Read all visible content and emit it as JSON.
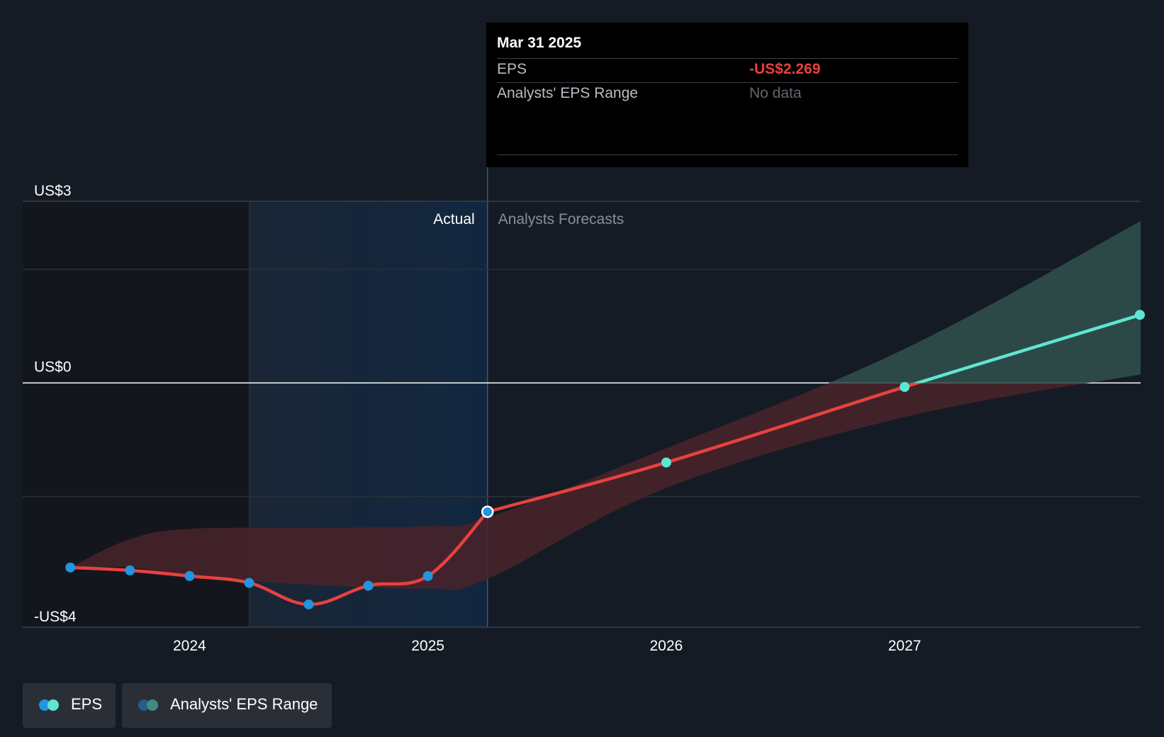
{
  "chart_data": {
    "type": "line",
    "y_axis": {
      "labels": [
        {
          "text": "US$3",
          "value": 3
        },
        {
          "text": "US$0",
          "value": 0
        },
        {
          "text": "-US$4",
          "value": -4
        }
      ],
      "ylim": [
        -4.3,
        3.2
      ],
      "zero_line": true
    },
    "x_axis": {
      "ticks": [
        {
          "text": "2024",
          "value": 2024.0
        },
        {
          "text": "2025",
          "value": 2025.0
        },
        {
          "text": "2026",
          "value": 2026.0
        },
        {
          "text": "2027",
          "value": 2027.0
        }
      ],
      "xlim": [
        2023.3,
        2027.99
      ]
    },
    "zones": {
      "actual_label": "Actual",
      "forecast_label": "Analysts Forecasts",
      "shaded_past_start": 2024.25,
      "divider": 2025.25
    },
    "series": [
      {
        "name": "EPS",
        "kind": "actual",
        "color": "#e8413e",
        "point_color": "#2394df",
        "points": [
          {
            "x": 2023.5,
            "y": -3.25
          },
          {
            "x": 2023.75,
            "y": -3.3
          },
          {
            "x": 2024.0,
            "y": -3.4
          },
          {
            "x": 2024.25,
            "y": -3.52
          },
          {
            "x": 2024.5,
            "y": -3.9
          },
          {
            "x": 2024.75,
            "y": -3.57
          },
          {
            "x": 2025.0,
            "y": -3.4
          },
          {
            "x": 2025.25,
            "y": -2.269
          }
        ]
      },
      {
        "name": "EPS",
        "kind": "forecast",
        "color": "#e8413e",
        "positive_color": "#5ee6d0",
        "point_color": "#5ee6d0",
        "points": [
          {
            "x": 2025.25,
            "y": -2.269
          },
          {
            "x": 2026.0,
            "y": -1.4
          },
          {
            "x": 2027.0,
            "y": -0.07
          },
          {
            "x": 2027.99,
            "y": 1.2
          }
        ]
      },
      {
        "name": "Analysts' EPS Range",
        "kind": "range",
        "positive_color": "#2f4f4c",
        "negative_color": "#4a232a",
        "upper": [
          {
            "x": 2023.5,
            "y": -3.25
          },
          {
            "x": 2023.75,
            "y": -2.75
          },
          {
            "x": 2024.0,
            "y": -2.57
          },
          {
            "x": 2024.5,
            "y": -2.55
          },
          {
            "x": 2025.0,
            "y": -2.52
          },
          {
            "x": 2025.25,
            "y": -2.37
          },
          {
            "x": 2026.0,
            "y": -1.15
          },
          {
            "x": 2027.0,
            "y": 0.6
          },
          {
            "x": 2027.99,
            "y": 2.85
          }
        ],
        "lower": [
          {
            "x": 2023.5,
            "y": -3.25
          },
          {
            "x": 2023.75,
            "y": -3.25
          },
          {
            "x": 2024.0,
            "y": -3.4
          },
          {
            "x": 2024.5,
            "y": -3.55
          },
          {
            "x": 2025.0,
            "y": -3.62
          },
          {
            "x": 2025.25,
            "y": -3.45
          },
          {
            "x": 2026.0,
            "y": -1.85
          },
          {
            "x": 2027.0,
            "y": -0.6
          },
          {
            "x": 2027.99,
            "y": 0.15
          }
        ]
      }
    ],
    "tooltip": {
      "title": "Mar 31 2025",
      "rows": [
        {
          "key": "EPS",
          "value": "-US$2.269"
        },
        {
          "key": "Analysts' EPS Range",
          "value": "No data"
        }
      ]
    },
    "legend": [
      {
        "label": "EPS",
        "colors": [
          "#2394df",
          "#5ee6d0"
        ]
      },
      {
        "label": "Analysts' EPS Range",
        "colors": [
          "#2a5c88",
          "#3f8c84"
        ]
      }
    ]
  }
}
